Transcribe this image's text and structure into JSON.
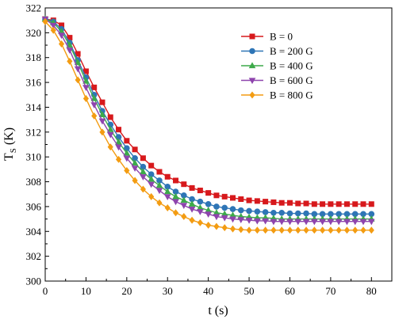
{
  "chart_data": {
    "type": "line",
    "title": "",
    "xlabel": "t (s)",
    "ylabel": {
      "main": "T",
      "sub": "S",
      "unit": " (K)"
    },
    "xlim": [
      0,
      85
    ],
    "ylim": [
      300,
      322
    ],
    "x_ticks": [
      0,
      10,
      20,
      30,
      40,
      50,
      60,
      70,
      80
    ],
    "y_ticks": [
      300,
      302,
      304,
      306,
      308,
      310,
      312,
      314,
      316,
      318,
      320,
      322
    ],
    "grid": false,
    "legend_position": "top-right",
    "x": [
      0,
      2,
      4,
      6,
      8,
      10,
      12,
      14,
      16,
      18,
      20,
      22,
      24,
      26,
      28,
      30,
      32,
      34,
      36,
      38,
      40,
      42,
      44,
      46,
      48,
      50,
      52,
      54,
      56,
      58,
      60,
      62,
      64,
      66,
      68,
      70,
      72,
      74,
      76,
      78,
      80
    ],
    "series": [
      {
        "name": "B = 0",
        "color": "#d7191c",
        "marker": "square",
        "values": [
          321.1,
          321.0,
          320.6,
          319.6,
          318.3,
          316.9,
          315.6,
          314.4,
          313.2,
          312.2,
          311.3,
          310.6,
          309.9,
          309.3,
          308.8,
          308.4,
          308.1,
          307.8,
          307.5,
          307.3,
          307.1,
          306.9,
          306.8,
          306.7,
          306.6,
          306.5,
          306.45,
          306.4,
          306.35,
          306.3,
          306.3,
          306.25,
          306.25,
          306.2,
          306.2,
          306.2,
          306.2,
          306.2,
          306.2,
          306.2,
          306.2
        ]
      },
      {
        "name": "B = 200 G",
        "color": "#2e75b6",
        "marker": "circle",
        "values": [
          321.1,
          320.9,
          320.3,
          319.2,
          317.8,
          316.4,
          315.0,
          313.7,
          312.6,
          311.6,
          310.7,
          309.9,
          309.2,
          308.6,
          308.1,
          307.6,
          307.2,
          306.9,
          306.6,
          306.4,
          306.2,
          306.0,
          305.9,
          305.8,
          305.7,
          305.65,
          305.6,
          305.55,
          305.5,
          305.5,
          305.45,
          305.45,
          305.45,
          305.4,
          305.4,
          305.4,
          305.4,
          305.4,
          305.4,
          305.4,
          305.4
        ]
      },
      {
        "name": "B = 400 G",
        "color": "#3daa4a",
        "marker": "triangle-up",
        "values": [
          321.1,
          320.8,
          320.1,
          319.0,
          317.6,
          316.1,
          314.7,
          313.4,
          312.2,
          311.2,
          310.3,
          309.5,
          308.8,
          308.2,
          307.7,
          307.2,
          306.8,
          306.5,
          306.2,
          305.9,
          305.7,
          305.5,
          305.4,
          305.3,
          305.2,
          305.15,
          305.1,
          305.1,
          305.05,
          305.0,
          305.0,
          305.0,
          305.0,
          305.0,
          305.0,
          305.0,
          305.0,
          305.0,
          305.0,
          305.0,
          305.0
        ]
      },
      {
        "name": "B = 600 G",
        "color": "#8e44ad",
        "marker": "triangle-down",
        "values": [
          321.1,
          320.6,
          319.8,
          318.6,
          317.1,
          315.6,
          314.2,
          312.9,
          311.8,
          310.8,
          309.9,
          309.1,
          308.4,
          307.8,
          307.3,
          306.8,
          306.4,
          306.1,
          305.8,
          305.6,
          305.4,
          305.2,
          305.1,
          305.0,
          304.95,
          304.9,
          304.85,
          304.85,
          304.8,
          304.8,
          304.8,
          304.8,
          304.8,
          304.8,
          304.8,
          304.8,
          304.8,
          304.8,
          304.8,
          304.8,
          304.8
        ]
      },
      {
        "name": "B = 800 G",
        "color": "#f39c12",
        "marker": "diamond",
        "values": [
          320.9,
          320.2,
          319.1,
          317.7,
          316.2,
          314.7,
          313.3,
          312.0,
          310.8,
          309.8,
          308.9,
          308.1,
          307.4,
          306.8,
          306.3,
          305.9,
          305.5,
          305.2,
          304.9,
          304.7,
          304.5,
          304.4,
          304.3,
          304.2,
          304.15,
          304.1,
          304.1,
          304.1,
          304.1,
          304.1,
          304.1,
          304.1,
          304.1,
          304.1,
          304.1,
          304.1,
          304.1,
          304.1,
          304.1,
          304.1,
          304.1
        ]
      }
    ]
  }
}
